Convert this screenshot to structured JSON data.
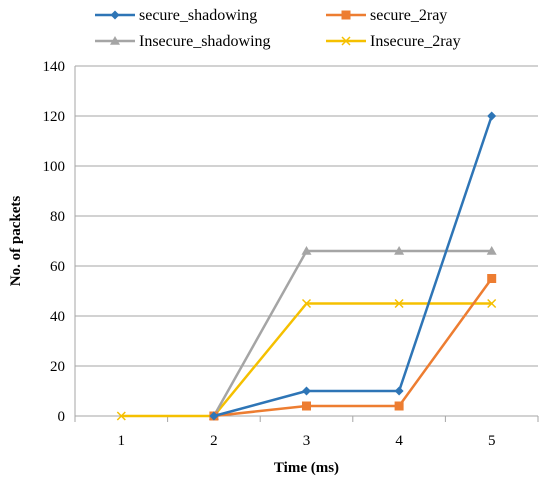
{
  "chart_data": {
    "type": "line",
    "title": "",
    "xlabel": "Time (ms)",
    "ylabel": "No. of packets",
    "x": [
      1,
      2,
      3,
      4,
      5
    ],
    "x_tick_labels": [
      "1",
      "2",
      "3",
      "4",
      "5"
    ],
    "ylim": [
      0,
      140
    ],
    "y_ticks": [
      0,
      20,
      40,
      60,
      80,
      100,
      120,
      140
    ],
    "grid": "horizontal",
    "legend_position": "top",
    "series": [
      {
        "name": "secure_shadowing",
        "color": "#2E75B6",
        "marker": "diamond",
        "values": [
          null,
          0,
          10,
          10,
          120
        ]
      },
      {
        "name": "secure_2ray",
        "color": "#ED7D31",
        "marker": "square",
        "values": [
          null,
          0,
          4,
          4,
          55
        ]
      },
      {
        "name": "Insecure_shadowing",
        "color": "#A5A5A5",
        "marker": "triangle",
        "values": [
          null,
          0,
          66,
          66,
          66
        ]
      },
      {
        "name": "Insecure_2ray",
        "color": "#F5C000",
        "marker": "x",
        "values": [
          0,
          0,
          45,
          45,
          45
        ]
      }
    ]
  }
}
